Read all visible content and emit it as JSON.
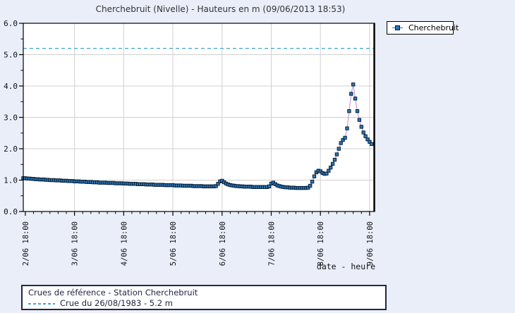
{
  "title": "Cherchebruit (Nivelle) - Hauteurs en m (09/06/2013 18:53)",
  "legend": {
    "series_label": "Cherchebruit"
  },
  "reference_box": {
    "line1": "Crues de référence - Station Cherchebruit",
    "line2": "Crue du 26/08/1983 - 5.2 m"
  },
  "colors": {
    "background": "#e9eef9",
    "plot_background": "#ffffff",
    "grid": "#d0d0d0",
    "axis": "#000000",
    "tick_label": "#111111",
    "series_marker": "#2e76b5",
    "series_marker_border": "#001830",
    "series_line": "#b98fd0",
    "reference": "#44a3d5"
  },
  "chart_data": {
    "type": "line",
    "title": "Cherchebruit (Nivelle) - Hauteurs en m (09/06/2013 18:53)",
    "xlabel": "date - heure",
    "ylabel": "Hauteurs en m",
    "ylim": [
      0,
      6
    ],
    "grid": true,
    "legend_position": "top-right",
    "y_tick_labels": [
      "0.0",
      "1.0",
      "2.0",
      "3.0",
      "4.0",
      "5.0",
      "6.0"
    ],
    "y_minor_step": 0.5,
    "x_tick_labels": [
      "2/06 18:00",
      "3/06 18:00",
      "4/06 18:00",
      "5/06 18:00",
      "6/06 18:00",
      "7/06 18:00",
      "8/06 18:00",
      "9/06 18:00"
    ],
    "x_minor_tick_hours": 4,
    "t_step_hours": 1,
    "reference_line": {
      "value": 5.2,
      "label": "Crue du 26/08/1983 - 5.2 m"
    },
    "series": [
      {
        "name": "Cherchebruit",
        "start_hour": 0,
        "values": [
          1.06,
          1.06,
          1.05,
          1.05,
          1.04,
          1.04,
          1.03,
          1.03,
          1.02,
          1.02,
          1.02,
          1.01,
          1.01,
          1.0,
          1.0,
          1.0,
          0.99,
          0.99,
          0.99,
          0.98,
          0.98,
          0.98,
          0.97,
          0.97,
          0.97,
          0.96,
          0.96,
          0.96,
          0.95,
          0.95,
          0.95,
          0.94,
          0.94,
          0.94,
          0.93,
          0.93,
          0.93,
          0.92,
          0.92,
          0.92,
          0.92,
          0.91,
          0.91,
          0.91,
          0.91,
          0.9,
          0.9,
          0.9,
          0.9,
          0.89,
          0.89,
          0.89,
          0.88,
          0.88,
          0.88,
          0.88,
          0.87,
          0.87,
          0.87,
          0.87,
          0.86,
          0.86,
          0.86,
          0.86,
          0.85,
          0.85,
          0.85,
          0.85,
          0.85,
          0.84,
          0.84,
          0.84,
          0.84,
          0.84,
          0.83,
          0.83,
          0.83,
          0.83,
          0.82,
          0.82,
          0.82,
          0.82,
          0.82,
          0.81,
          0.81,
          0.81,
          0.81,
          0.81,
          0.8,
          0.8,
          0.8,
          0.8,
          0.8,
          0.8,
          0.81,
          0.88,
          0.96,
          0.98,
          0.93,
          0.89,
          0.86,
          0.84,
          0.83,
          0.82,
          0.81,
          0.81,
          0.8,
          0.8,
          0.79,
          0.79,
          0.79,
          0.79,
          0.78,
          0.78,
          0.78,
          0.78,
          0.78,
          0.78,
          0.78,
          0.78,
          0.8,
          0.89,
          0.92,
          0.87,
          0.83,
          0.81,
          0.79,
          0.78,
          0.77,
          0.77,
          0.76,
          0.76,
          0.76,
          0.75,
          0.75,
          0.75,
          0.75,
          0.75,
          0.75,
          0.76,
          0.82,
          0.95,
          1.12,
          1.25,
          1.3,
          1.28,
          1.23,
          1.2,
          1.21,
          1.3,
          1.4,
          1.52,
          1.65,
          1.82,
          2.0,
          2.18,
          2.28,
          2.35,
          2.65,
          3.2,
          3.75,
          4.05,
          3.6,
          3.2,
          2.92,
          2.7,
          2.52,
          2.4,
          2.3,
          2.22,
          2.15
        ]
      }
    ]
  }
}
